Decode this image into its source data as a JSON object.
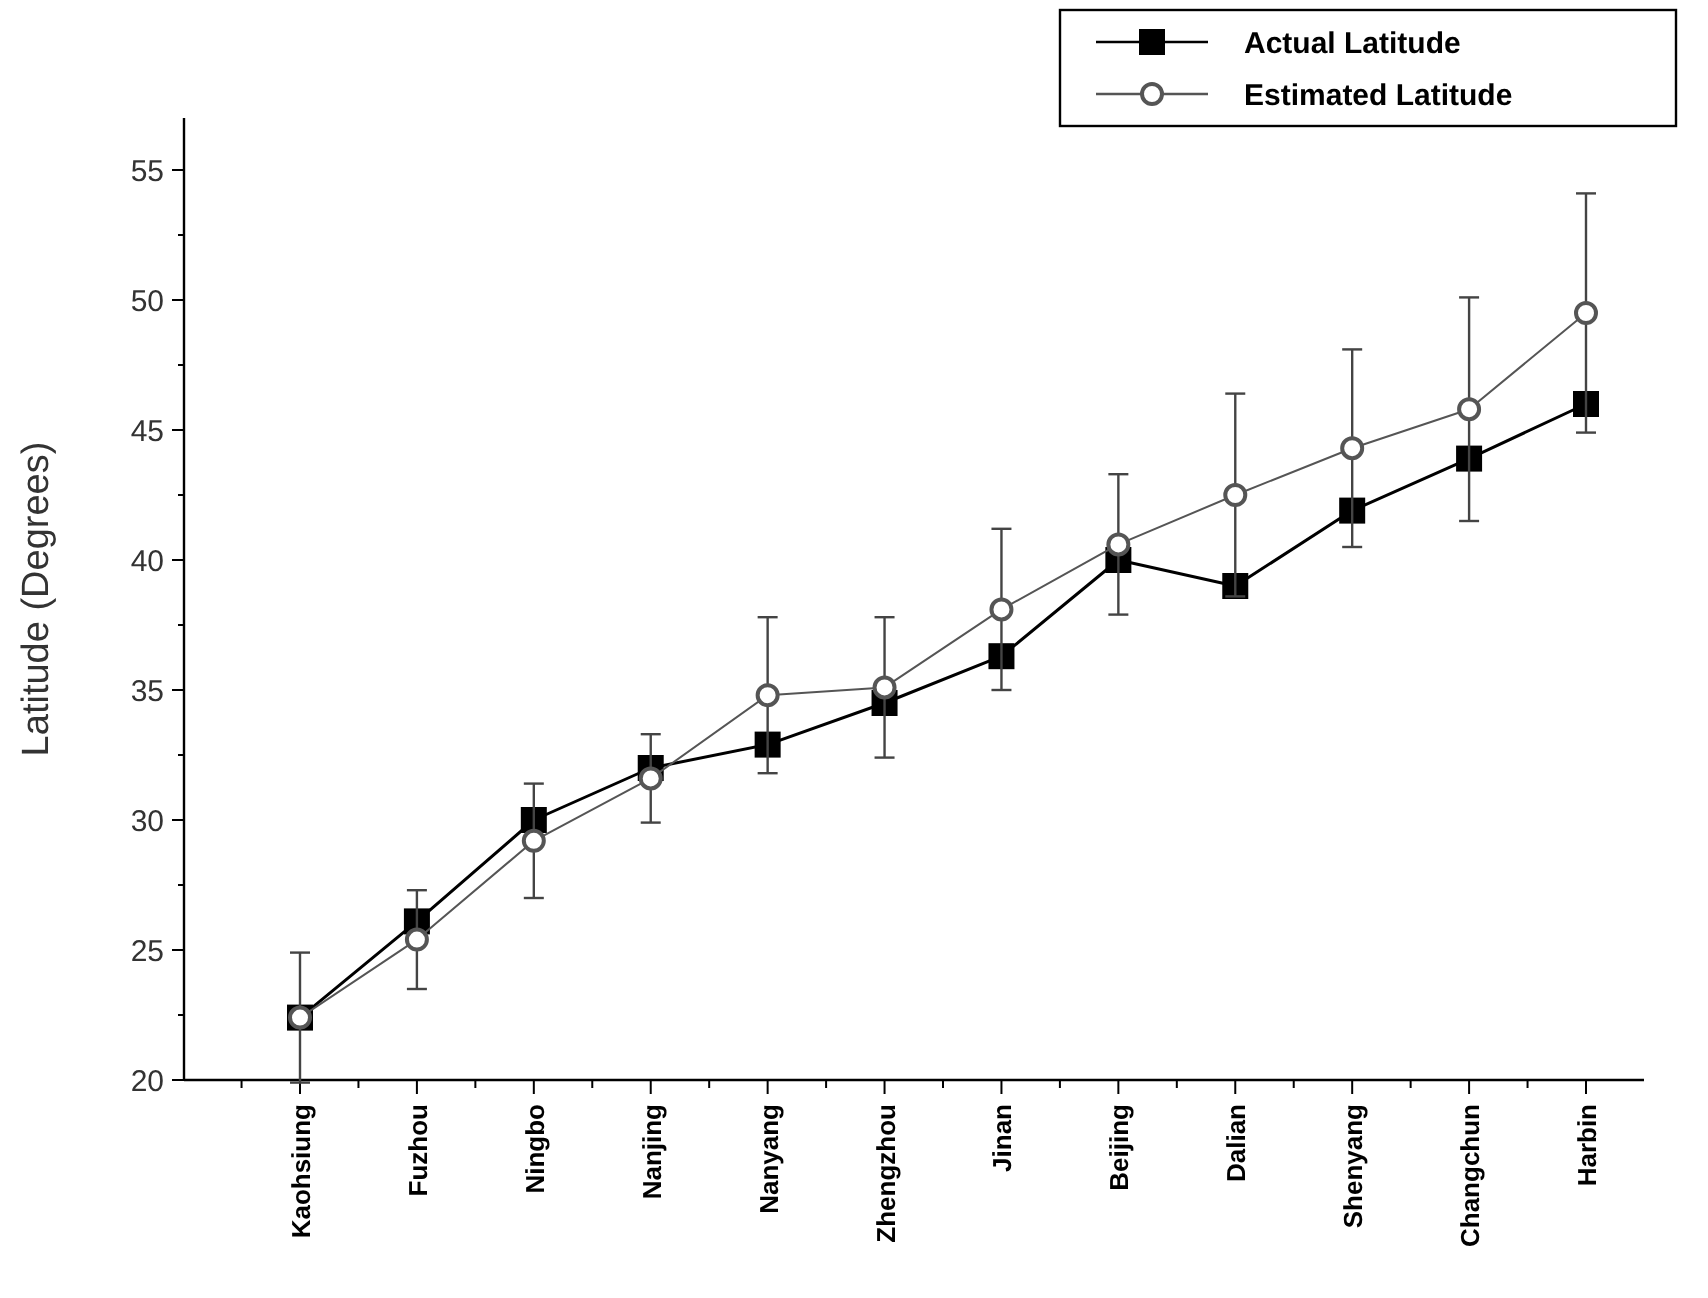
{
  "chart_data": {
    "type": "line",
    "ylabel": "Latitude (Degrees)",
    "categories": [
      "Kaohsiung",
      "Fuzhou",
      "Ningbo",
      "Nanjing",
      "Nanyang",
      "Zhengzhou",
      "Jinan",
      "Beijing",
      "Dalian",
      "Shenyang",
      "Changchun",
      "Harbin"
    ],
    "ylim": [
      20,
      57
    ],
    "yticks": [
      20,
      25,
      30,
      35,
      40,
      45,
      50,
      55
    ],
    "grid": false,
    "legend": "top right",
    "series": [
      {
        "name": "Actual Latitude",
        "color": "#000000",
        "marker": "square",
        "values": [
          22.4,
          26.1,
          30.0,
          32.0,
          32.9,
          34.5,
          36.3,
          40.0,
          39.0,
          41.9,
          43.9,
          46.0
        ]
      },
      {
        "name": "Estimated Latitude",
        "color": "#555555",
        "marker": "circle",
        "values": [
          22.4,
          25.4,
          29.2,
          31.6,
          34.8,
          35.1,
          38.1,
          40.6,
          42.5,
          44.3,
          45.8,
          49.5
        ],
        "errors": [
          2.5,
          1.9,
          2.2,
          1.7,
          3.0,
          2.7,
          3.1,
          2.7,
          3.9,
          3.8,
          4.3,
          4.6
        ]
      }
    ]
  }
}
